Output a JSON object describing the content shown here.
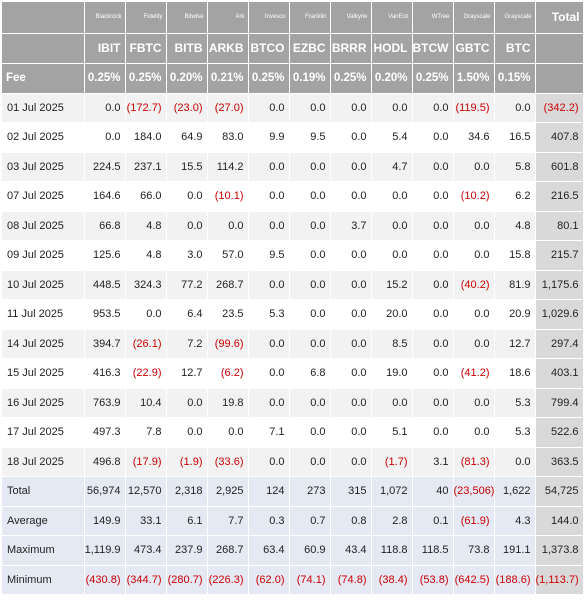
{
  "header": {
    "issuers": [
      "Blackrock",
      "Fidelity",
      "Bitwise",
      "Ark",
      "Invesco",
      "Franklin",
      "Valkyrie",
      "VanEck",
      "WTree",
      "Grayscale",
      "Grayscale"
    ],
    "total_label": "Total",
    "tickers": [
      "IBIT",
      "FBTC",
      "BITB",
      "ARKB",
      "BTCO",
      "EZBC",
      "BRRR",
      "HODL",
      "BTCW",
      "GBTC",
      "BTC"
    ],
    "fee_label": "Fee",
    "fees": [
      "0.25%",
      "0.25%",
      "0.20%",
      "0.21%",
      "0.25%",
      "0.19%",
      "0.25%",
      "0.20%",
      "0.25%",
      "1.50%",
      "0.15%"
    ]
  },
  "rows": [
    {
      "date": "01 Jul 2025",
      "values": [
        "0.0",
        "(172.7)",
        "(23.0)",
        "(27.0)",
        "0.0",
        "0.0",
        "0.0",
        "0.0",
        "0.0",
        "(119.5)",
        "0.0"
      ],
      "total": "(342.2)"
    },
    {
      "date": "02 Jul 2025",
      "values": [
        "0.0",
        "184.0",
        "64.9",
        "83.0",
        "9.9",
        "9.5",
        "0.0",
        "5.4",
        "0.0",
        "34.6",
        "16.5"
      ],
      "total": "407.8"
    },
    {
      "date": "03 Jul 2025",
      "values": [
        "224.5",
        "237.1",
        "15.5",
        "114.2",
        "0.0",
        "0.0",
        "0.0",
        "4.7",
        "0.0",
        "0.0",
        "5.8"
      ],
      "total": "601.8"
    },
    {
      "date": "07 Jul 2025",
      "values": [
        "164.6",
        "66.0",
        "0.0",
        "(10.1)",
        "0.0",
        "0.0",
        "0.0",
        "0.0",
        "0.0",
        "(10.2)",
        "6.2"
      ],
      "total": "216.5"
    },
    {
      "date": "08 Jul 2025",
      "values": [
        "66.8",
        "4.8",
        "0.0",
        "0.0",
        "0.0",
        "0.0",
        "3.7",
        "0.0",
        "0.0",
        "0.0",
        "4.8"
      ],
      "total": "80.1"
    },
    {
      "date": "09 Jul 2025",
      "values": [
        "125.6",
        "4.8",
        "3.0",
        "57.0",
        "9.5",
        "0.0",
        "0.0",
        "0.0",
        "0.0",
        "0.0",
        "15.8"
      ],
      "total": "215.7"
    },
    {
      "date": "10 Jul 2025",
      "values": [
        "448.5",
        "324.3",
        "77.2",
        "268.7",
        "0.0",
        "0.0",
        "0.0",
        "15.2",
        "0.0",
        "(40.2)",
        "81.9"
      ],
      "total": "1,175.6"
    },
    {
      "date": "11 Jul 2025",
      "values": [
        "953.5",
        "0.0",
        "6.4",
        "23.5",
        "5.3",
        "0.0",
        "0.0",
        "20.0",
        "0.0",
        "0.0",
        "20.9"
      ],
      "total": "1,029.6"
    },
    {
      "date": "14 Jul 2025",
      "values": [
        "394.7",
        "(26.1)",
        "7.2",
        "(99.6)",
        "0.0",
        "0.0",
        "0.0",
        "8.5",
        "0.0",
        "0.0",
        "12.7"
      ],
      "total": "297.4"
    },
    {
      "date": "15 Jul 2025",
      "values": [
        "416.3",
        "(22.9)",
        "12.7",
        "(6.2)",
        "0.0",
        "6.8",
        "0.0",
        "19.0",
        "0.0",
        "(41.2)",
        "18.6"
      ],
      "total": "403.1"
    },
    {
      "date": "16 Jul 2025",
      "values": [
        "763.9",
        "10.4",
        "0.0",
        "19.8",
        "0.0",
        "0.0",
        "0.0",
        "0.0",
        "0.0",
        "0.0",
        "5.3"
      ],
      "total": "799.4"
    },
    {
      "date": "17 Jul 2025",
      "values": [
        "497.3",
        "7.8",
        "0.0",
        "0.0",
        "7.1",
        "0.0",
        "0.0",
        "5.1",
        "0.0",
        "0.0",
        "5.3"
      ],
      "total": "522.6"
    },
    {
      "date": "18 Jul 2025",
      "values": [
        "496.8",
        "(17.9)",
        "(1.9)",
        "(33.6)",
        "0.0",
        "0.0",
        "0.0",
        "(1.7)",
        "3.1",
        "(81.3)",
        "0.0"
      ],
      "total": "363.5"
    }
  ],
  "summary": [
    {
      "label": "Total",
      "values": [
        "56,974",
        "12,570",
        "2,318",
        "2,925",
        "124",
        "273",
        "315",
        "1,072",
        "40",
        "(23,506)",
        "1,622"
      ],
      "total": "54,725"
    },
    {
      "label": "Average",
      "values": [
        "149.9",
        "33.1",
        "6.1",
        "7.7",
        "0.3",
        "0.7",
        "0.8",
        "2.8",
        "0.1",
        "(61.9)",
        "4.3"
      ],
      "total": "144.0"
    },
    {
      "label": "Maximum",
      "values": [
        "1,119.9",
        "473.4",
        "237.9",
        "268.7",
        "63.4",
        "60.9",
        "43.4",
        "118.8",
        "118.5",
        "73.8",
        "191.1"
      ],
      "total": "1,373.8"
    },
    {
      "label": "Minimum",
      "values": [
        "(430.8)",
        "(344.7)",
        "(280.7)",
        "(226.3)",
        "(62.0)",
        "(74.1)",
        "(74.8)",
        "(38.4)",
        "(53.8)",
        "(642.5)",
        "(188.6)"
      ],
      "total": "(1,113.7)"
    }
  ]
}
